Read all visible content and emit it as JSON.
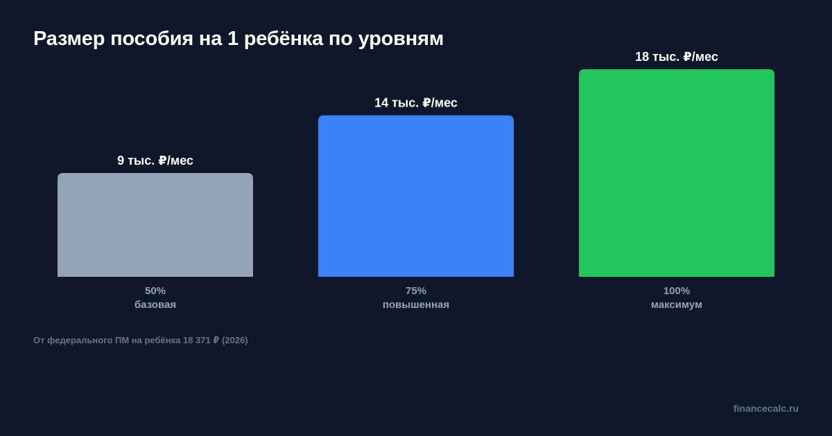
{
  "chart_data": {
    "type": "bar",
    "title": "Размер пособия на 1 ребёнка по уровням",
    "xlabel": "",
    "ylabel": "",
    "ylim": [
      0,
      18
    ],
    "categories": [
      {
        "pct": "50%",
        "label": "базовая"
      },
      {
        "pct": "75%",
        "label": "повышенная"
      },
      {
        "pct": "100%",
        "label": "максимум"
      }
    ],
    "values": [
      9,
      14,
      18
    ],
    "value_labels": [
      "9 тыс. ₽/мес",
      "14 тыс. ₽/мес",
      "18 тыс. ₽/мес"
    ],
    "colors": [
      "#94a3b8",
      "#3b82f6",
      "#22c55e"
    ],
    "grid": false,
    "legend": "none"
  },
  "footnote": "От федерального ПМ на ребёнка 18 371 ₽ (2026)",
  "brand": "financecalc.ru"
}
